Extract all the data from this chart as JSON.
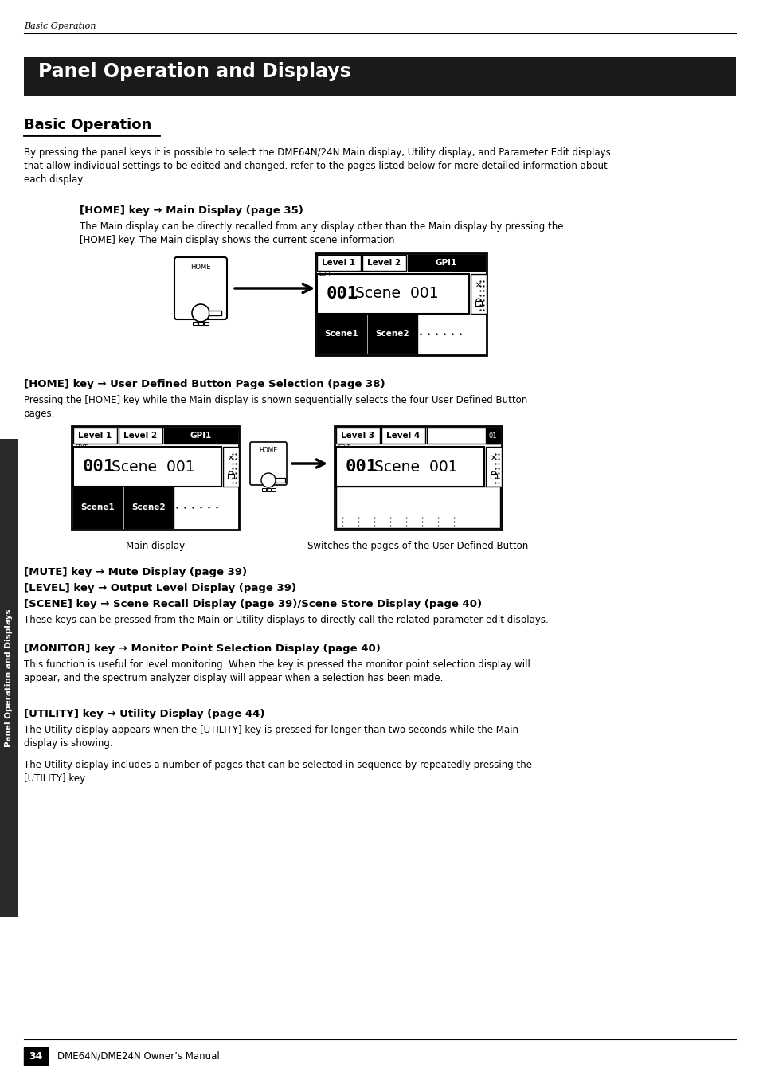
{
  "page_header": "Basic Operation",
  "main_title": "Panel Operation and Displays",
  "section_title": "Basic Operation",
  "intro_lines": [
    "By pressing the panel keys it is possible to select the DME64N/24N Main display, Utility display, and Parameter Edit displays",
    "that allow individual settings to be edited and changed. refer to the pages listed below for more detailed information about",
    "each display."
  ],
  "heading1": "[HOME] key → Main Display (page 35)",
  "body1": [
    "The Main display can be directly recalled from any display other than the Main display by pressing the",
    "[HOME] key. The Main display shows the current scene information"
  ],
  "heading2": "[HOME] key → User Defined Button Page Selection (page 38)",
  "body2": [
    "Pressing the [HOME] key while the Main display is shown sequentially selects the four User Defined Button",
    "pages."
  ],
  "caption_left": "Main display",
  "caption_right": "Switches the pages of the User Defined Button",
  "heading3_1": "[MUTE] key → Mute Display (page 39)",
  "heading3_2": "[LEVEL] key → Output Level Display (page 39)",
  "heading3_3": "[SCENE] key → Scene Recall Display (page 39)/Scene Store Display (page 40)",
  "body3": "These keys can be pressed from the Main or Utility displays to directly call the related parameter edit displays.",
  "heading4": "[MONITOR] key → Monitor Point Selection Display (page 40)",
  "body4": [
    "This function is useful for level monitoring. When the key is pressed the monitor point selection display will",
    "appear, and the spectrum analyzer display will appear when a selection has been made."
  ],
  "heading5": "[UTILITY] key → Utility Display (page 44)",
  "body5a": [
    "The Utility display appears when the [UTILITY] key is pressed for longer than two seconds while the Main",
    "display is showing."
  ],
  "body5b": [
    "The Utility display includes a number of pages that can be selected in sequence by repeatedly pressing the",
    "[UTILITY] key."
  ],
  "page_num": "34",
  "page_footer": "DME64N/DME24N Owner’s Manual",
  "sidebar_text": "Panel Operation and Displays",
  "bg_color": "#ffffff",
  "title_bg": "#1a1a1a",
  "title_fg": "#ffffff",
  "sidebar_bg": "#2a2a2a"
}
